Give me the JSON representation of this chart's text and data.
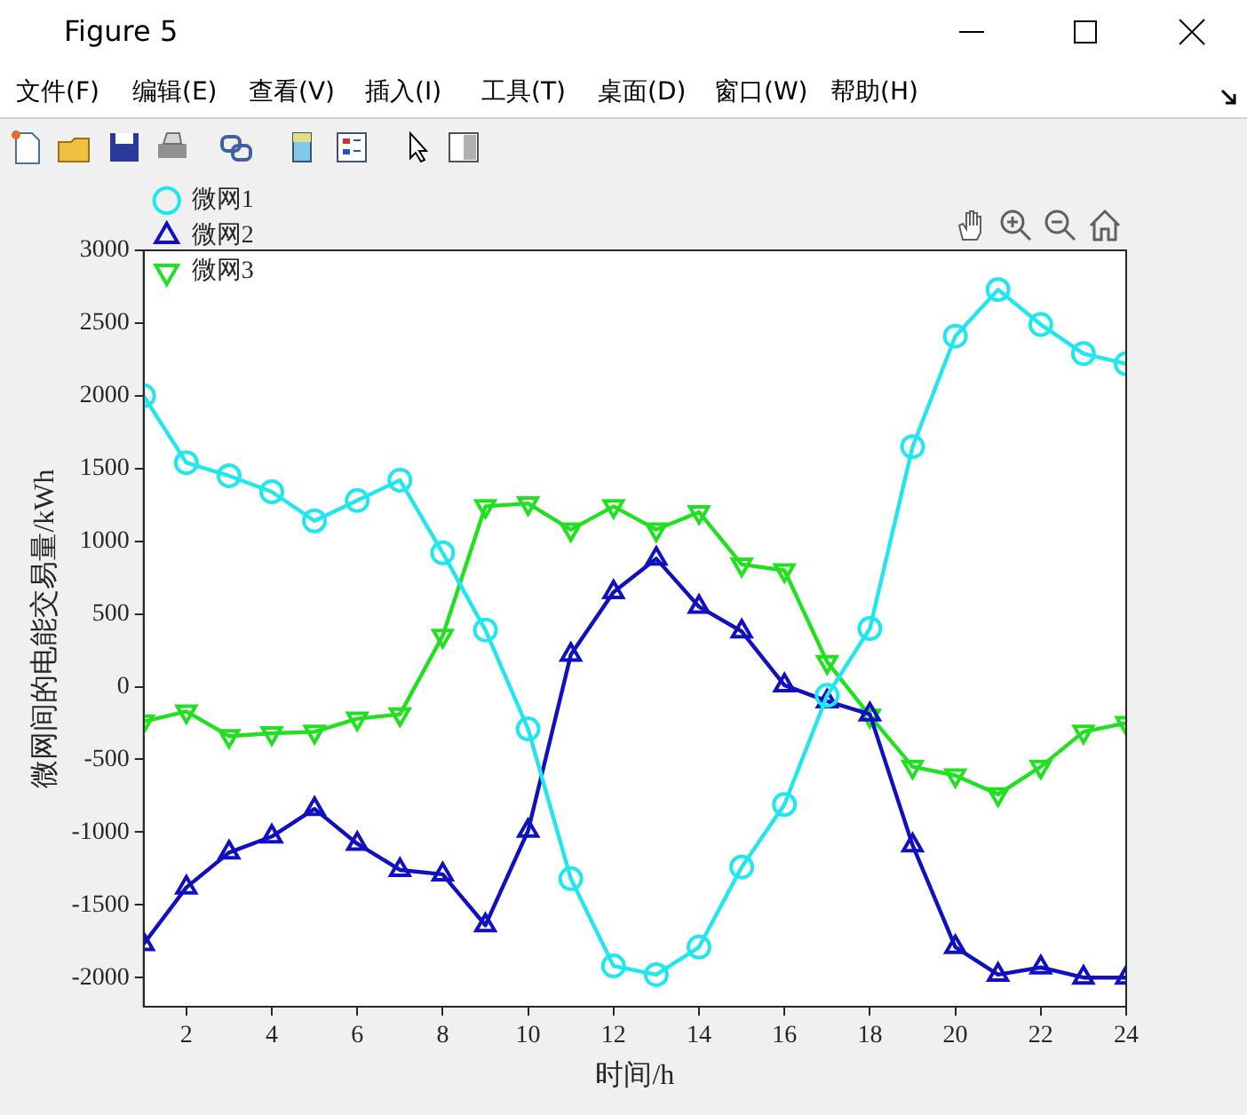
{
  "chart_data": {
    "type": "line",
    "title": "Figure 5",
    "annotations": [
      "文件(F)",
      "编辑(E)",
      "查看(V)",
      "插入(I)",
      "工具(T)",
      "桌面(D)",
      "窗口(W)",
      "帮助(H)"
    ],
    "xlabel": "时间/h",
    "ylabel": "微网间的电能交易量/kWh",
    "x": [
      1,
      2,
      3,
      4,
      5,
      6,
      7,
      8,
      9,
      10,
      11,
      12,
      13,
      14,
      15,
      16,
      17,
      18,
      19,
      20,
      21,
      22,
      23,
      24
    ],
    "xlim": [
      1,
      24
    ],
    "xticks": [
      2,
      4,
      6,
      8,
      10,
      12,
      14,
      16,
      18,
      20,
      22,
      24
    ],
    "ylim": [
      -2200,
      3000
    ],
    "yticks": [
      -2000,
      -1500,
      -1000,
      -500,
      0,
      500,
      1000,
      1500,
      2000,
      2500,
      3000
    ],
    "grid": false,
    "legend": "top left",
    "line_style": "solid",
    "series": [
      {
        "name": "微网1",
        "color": "#20e6f0",
        "marker": "circle",
        "values": [
          2000,
          1540,
          1450,
          1340,
          1140,
          1280,
          1420,
          920,
          390,
          -290,
          -1320,
          -1920,
          -1980,
          -1790,
          -1240,
          -810,
          -60,
          400,
          1650,
          2410,
          2730,
          2490,
          2290,
          2220
        ]
      },
      {
        "name": "微网2",
        "color": "#1010c0",
        "marker": "triangle",
        "values": [
          -1770,
          -1380,
          -1140,
          -1030,
          -840,
          -1080,
          -1260,
          -1290,
          -1640,
          -990,
          220,
          650,
          880,
          550,
          380,
          10,
          -100,
          -190,
          -1090,
          -1790,
          -1980,
          -1930,
          -2000,
          -2000
        ]
      },
      {
        "name": "微网3",
        "color": "#20e020",
        "marker": "triangle-down",
        "values": [
          -240,
          -170,
          -340,
          -320,
          -310,
          -220,
          -190,
          350,
          1240,
          1260,
          1080,
          1240,
          1080,
          1200,
          840,
          800,
          170,
          -200,
          -550,
          -610,
          -740,
          -550,
          -310,
          -250
        ]
      }
    ]
  }
}
